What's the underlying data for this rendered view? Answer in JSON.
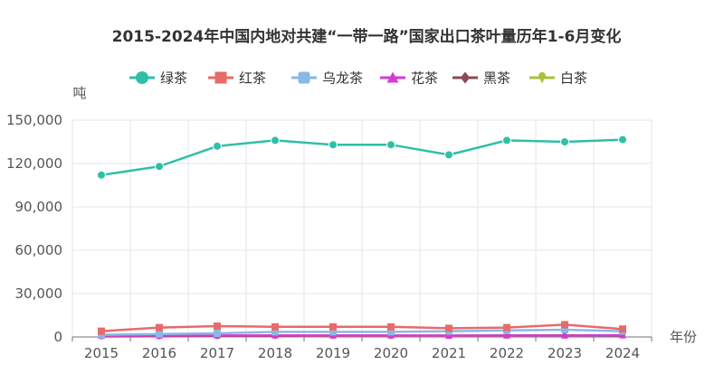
{
  "chart_data": {
    "type": "line",
    "title": "2015-2024年中国内地对共建“一带一路”国家出口茶叶量历年1-6月变化",
    "xlabel": "年份",
    "ylabel": "吨",
    "categories": [
      "2015",
      "2016",
      "2017",
      "2018",
      "2019",
      "2020",
      "2021",
      "2022",
      "2023",
      "2024"
    ],
    "ylim": [
      0,
      150000
    ],
    "yticks": [
      0,
      30000,
      60000,
      90000,
      120000,
      150000
    ],
    "ytick_labels": [
      "0",
      "30,000",
      "60,000",
      "90,000",
      "120,000",
      "150,000"
    ],
    "grid": true,
    "legend_position": "top",
    "series": [
      {
        "name": "绿茶",
        "color": "#2fbfa8",
        "marker": "circle",
        "values": [
          112000,
          118000,
          132000,
          136000,
          133000,
          133000,
          126000,
          136000,
          135000,
          136500
        ]
      },
      {
        "name": "红茶",
        "color": "#e86a6a",
        "marker": "rect",
        "values": [
          4000,
          6500,
          7500,
          7000,
          7000,
          7000,
          6000,
          6500,
          8500,
          5500
        ]
      },
      {
        "name": "乌龙茶",
        "color": "#8ab8e6",
        "marker": "roundRect",
        "values": [
          1500,
          2000,
          2500,
          3500,
          3500,
          3500,
          4000,
          4500,
          5000,
          4000
        ]
      },
      {
        "name": "花茶",
        "color": "#d63bd0",
        "marker": "triangle",
        "values": [
          800,
          900,
          1000,
          1100,
          1000,
          1000,
          900,
          1000,
          1000,
          1200
        ]
      },
      {
        "name": "黑茶",
        "color": "#8b4a55",
        "marker": "diamond",
        "values": [
          500,
          600,
          700,
          800,
          900,
          900,
          900,
          1000,
          1100,
          1200
        ]
      },
      {
        "name": "白茶",
        "color": "#a9c23a",
        "marker": "pin",
        "values": [
          300,
          400,
          500,
          600,
          700,
          700,
          800,
          900,
          1000,
          1100
        ]
      }
    ]
  }
}
